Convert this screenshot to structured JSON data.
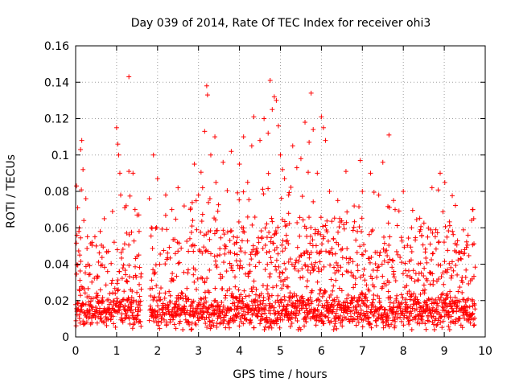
{
  "chart_data": {
    "type": "scatter",
    "title": "Day 039 of 2014, Rate Of TEC Index for receiver ohi3",
    "xlabel": "GPS time / hours",
    "ylabel": "ROTI / TECUs",
    "xlim": [
      0,
      10
    ],
    "ylim": [
      0,
      0.16
    ],
    "xticks": [
      0,
      1,
      2,
      3,
      4,
      5,
      6,
      7,
      8,
      9,
      10
    ],
    "yticks": [
      0,
      0.02,
      0.04,
      0.06,
      0.08,
      0.1,
      0.12,
      0.14,
      0.16
    ],
    "ytick_labels": [
      "0",
      "0.02",
      "0.04",
      "0.06",
      "0.08",
      "0.1",
      "0.12",
      "0.14",
      "0.16"
    ],
    "grid": true,
    "marker": "+",
    "color": "#ff0000",
    "points": [
      [
        0.02,
        0.083
      ],
      [
        0.05,
        0.071
      ],
      [
        0.08,
        0.058
      ],
      [
        0.12,
        0.103
      ],
      [
        0.15,
        0.108
      ],
      [
        0.18,
        0.092
      ],
      [
        0.2,
        0.064
      ],
      [
        0.25,
        0.076
      ],
      [
        0.1,
        0.045
      ],
      [
        0.3,
        0.04
      ],
      [
        0.4,
        0.052
      ],
      [
        0.5,
        0.05
      ],
      [
        0.6,
        0.058
      ],
      [
        0.7,
        0.065
      ],
      [
        0.8,
        0.047
      ],
      [
        0.9,
        0.069
      ],
      [
        1.0,
        0.115
      ],
      [
        1.03,
        0.106
      ],
      [
        1.05,
        0.1
      ],
      [
        1.08,
        0.09
      ],
      [
        1.1,
        0.078
      ],
      [
        1.2,
        0.071
      ],
      [
        1.3,
        0.143
      ],
      [
        1.3,
        0.091
      ],
      [
        1.4,
        0.09
      ],
      [
        1.45,
        0.07
      ],
      [
        1.5,
        0.067
      ],
      [
        1.55,
        0.058
      ],
      [
        1.8,
        0.076
      ],
      [
        1.85,
        0.06
      ],
      [
        1.9,
        0.1
      ],
      [
        2.0,
        0.087
      ],
      [
        2.2,
        0.078
      ],
      [
        2.35,
        0.07
      ],
      [
        2.5,
        0.082
      ],
      [
        2.65,
        0.072
      ],
      [
        2.8,
        0.07
      ],
      [
        2.9,
        0.095
      ],
      [
        3.0,
        0.078
      ],
      [
        3.1,
        0.082
      ],
      [
        3.15,
        0.113
      ],
      [
        3.2,
        0.138
      ],
      [
        3.22,
        0.133
      ],
      [
        3.3,
        0.1
      ],
      [
        3.4,
        0.11
      ],
      [
        3.6,
        0.096
      ],
      [
        3.8,
        0.102
      ],
      [
        4.0,
        0.095
      ],
      [
        4.1,
        0.11
      ],
      [
        4.2,
        0.085
      ],
      [
        4.3,
        0.105
      ],
      [
        4.35,
        0.121
      ],
      [
        4.5,
        0.108
      ],
      [
        4.6,
        0.12
      ],
      [
        4.7,
        0.112
      ],
      [
        4.75,
        0.141
      ],
      [
        4.8,
        0.125
      ],
      [
        4.85,
        0.132
      ],
      [
        4.9,
        0.13
      ],
      [
        4.95,
        0.116
      ],
      [
        5.0,
        0.1
      ],
      [
        5.05,
        0.092
      ],
      [
        5.1,
        0.087
      ],
      [
        5.2,
        0.078
      ],
      [
        5.3,
        0.105
      ],
      [
        5.4,
        0.093
      ],
      [
        5.5,
        0.098
      ],
      [
        5.6,
        0.118
      ],
      [
        5.7,
        0.107
      ],
      [
        5.75,
        0.134
      ],
      [
        5.8,
        0.114
      ],
      [
        5.9,
        0.09
      ],
      [
        6.0,
        0.121
      ],
      [
        6.05,
        0.115
      ],
      [
        6.1,
        0.108
      ],
      [
        6.2,
        0.08
      ],
      [
        6.4,
        0.075
      ],
      [
        6.6,
        0.091
      ],
      [
        6.8,
        0.072
      ],
      [
        6.95,
        0.097
      ],
      [
        7.0,
        0.08
      ],
      [
        7.2,
        0.09
      ],
      [
        7.4,
        0.078
      ],
      [
        7.5,
        0.096
      ],
      [
        7.65,
        0.111
      ],
      [
        7.8,
        0.07
      ],
      [
        8.0,
        0.08
      ],
      [
        8.2,
        0.06
      ],
      [
        8.4,
        0.058
      ],
      [
        8.7,
        0.082
      ],
      [
        8.9,
        0.09
      ],
      [
        9.2,
        0.058
      ],
      [
        9.5,
        0.048
      ],
      [
        9.7,
        0.07
      ],
      [
        9.72,
        0.065
      ]
    ]
  }
}
